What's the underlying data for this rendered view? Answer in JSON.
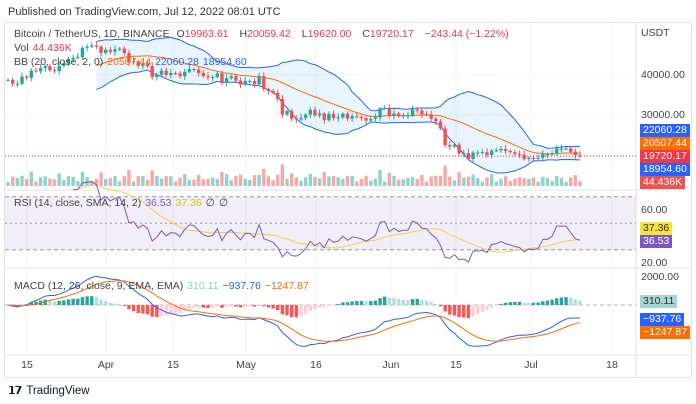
{
  "published": "Published on TradingView.com, Jul 12, 2022 08:01 UTC",
  "symbol": {
    "name": "Bitcoin / TetherUS, 1D, BINANCE",
    "o_label": "O",
    "o": "19963.61",
    "h_label": "H",
    "h": "20059.42",
    "l_label": "L",
    "l": "19620.00",
    "c_label": "C",
    "c": "19720.17",
    "change": "−243.44 (−1.22%)"
  },
  "vol": {
    "label": "Vol",
    "value": "44.436K"
  },
  "bb": {
    "label": "BB (20, close, 2, 0)",
    "basis": "20507.44",
    "upper": "22060.28",
    "lower": "18954.60"
  },
  "rsi": {
    "label": "RSI (14, close, SMA, 14, 2)",
    "rsi": "36.53",
    "sma": "37.36",
    "x1": "∅",
    "x2": "∅"
  },
  "macd": {
    "label": "MACD (12, 26, close, 9, EMA, EMA)",
    "hist": "310.11",
    "macd": "−937.76",
    "signal": "−1247.87"
  },
  "price_axis": {
    "currency": "USDT",
    "ticks": [
      "40000.00",
      "30000.00"
    ],
    "rsi_ticks": [
      "60.00",
      "20.00"
    ],
    "macd_ticks": [
      "2000.00"
    ]
  },
  "badges": {
    "upper": "22060.28",
    "basis": "20507.44",
    "close": "19720.17",
    "lower": "18954.60",
    "vol": "44.436K",
    "rsi_sma": "37.36",
    "rsi": "36.53",
    "hist": "310.11",
    "macd": "−937.76",
    "signal": "−1247.87"
  },
  "time_axis": [
    "15",
    "Apr",
    "15",
    "May",
    "16",
    "Jun",
    "15",
    "Jul",
    "18"
  ],
  "footer": {
    "brand": "TradingView",
    "logo_icon": "tradingview-logo-icon"
  },
  "colors": {
    "up": "#26a69a",
    "down": "#ef5350",
    "bb_band": "#2962ff",
    "bb_basis": "#ff6d00",
    "rsi": "#7e57c2",
    "rsi_sma": "#f5d33d",
    "macd": "#2962ff",
    "signal": "#ff6d00"
  },
  "chart_data": {
    "type": "candlestick",
    "start_date": "2022-03-11",
    "unit": "thousand USDT",
    "closes": [
      38.8,
      37.8,
      37.8,
      39.6,
      39.3,
      41.1,
      40.9,
      41.7,
      42.2,
      41.2,
      41.0,
      42.3,
      42.9,
      44.0,
      44.3,
      44.5,
      46.8,
      47.1,
      47.4,
      47.1,
      45.5,
      46.3,
      45.8,
      46.4,
      46.6,
      45.5,
      43.2,
      43.4,
      42.3,
      42.8,
      42.2,
      39.5,
      40.1,
      41.1,
      40.0,
      40.5,
      40.4,
      39.7,
      40.8,
      41.5,
      41.4,
      40.5,
      39.7,
      39.4,
      39.5,
      40.4,
      38.1,
      39.2,
      39.7,
      38.6,
      37.6,
      38.5,
      38.5,
      37.7,
      39.7,
      36.5,
      36.0,
      35.5,
      34.0,
      30.1,
      31.0,
      29.1,
      28.9,
      29.3,
      30.1,
      31.3,
      29.9,
      30.4,
      28.7,
      30.3,
      29.2,
      29.4,
      30.3,
      29.1,
      29.7,
      29.5,
      29.2,
      28.6,
      29.0,
      29.4,
      31.7,
      31.8,
      29.8,
      30.4,
      29.7,
      29.9,
      29.9,
      31.4,
      31.1,
      30.2,
      30.1,
      29.1,
      28.4,
      26.6,
      22.5,
      22.1,
      22.6,
      20.4,
      20.5,
      19.0,
      20.6,
      20.6,
      20.7,
      20.0,
      21.1,
      21.2,
      21.5,
      21.0,
      20.7,
      20.3,
      20.1,
      19.0,
      19.3,
      19.2,
      19.3,
      20.2,
      20.2,
      20.5,
      21.6,
      21.6,
      21.6,
      20.8,
      19.96,
      19.72
    ]
  }
}
